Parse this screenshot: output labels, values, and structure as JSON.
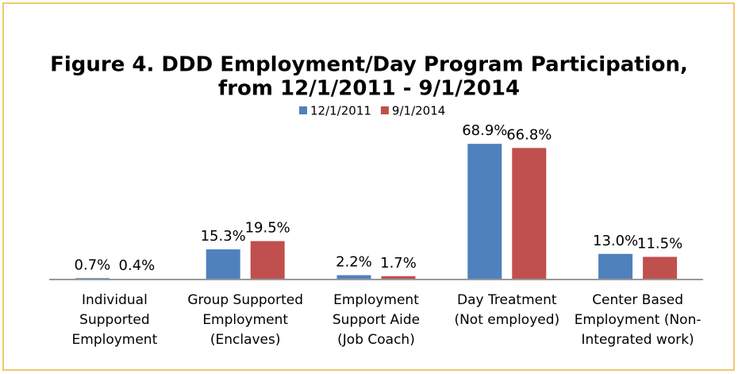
{
  "chart_data": {
    "type": "bar",
    "title": [
      "Figure 4. DDD Employment/Day Program Participation,",
      "from 12/1/2011 - 9/1/2014"
    ],
    "categories": [
      [
        "Individual",
        "Supported",
        "Employment"
      ],
      [
        "Group Supported",
        "Employment",
        "(Enclaves)"
      ],
      [
        "Employment",
        "Support Aide",
        "(Job Coach)"
      ],
      [
        "Day Treatment",
        "(Not employed)"
      ],
      [
        "Center Based",
        "Employment (Non-",
        "Integrated work)"
      ]
    ],
    "series": [
      {
        "name": "12/1/2011",
        "color": "#4f81bd",
        "values": [
          0.7,
          15.3,
          2.2,
          68.9,
          13.0
        ],
        "value_labels": [
          "0.7%",
          "15.3%",
          "2.2%",
          "68.9%",
          "13.0%"
        ]
      },
      {
        "name": "9/1/2014",
        "color": "#c0504d",
        "values": [
          0.4,
          19.5,
          1.7,
          66.8,
          11.5
        ],
        "value_labels": [
          "0.4%",
          "19.5%",
          "1.7%",
          "66.8%",
          "11.5%"
        ]
      }
    ],
    "legend": "top"
  }
}
